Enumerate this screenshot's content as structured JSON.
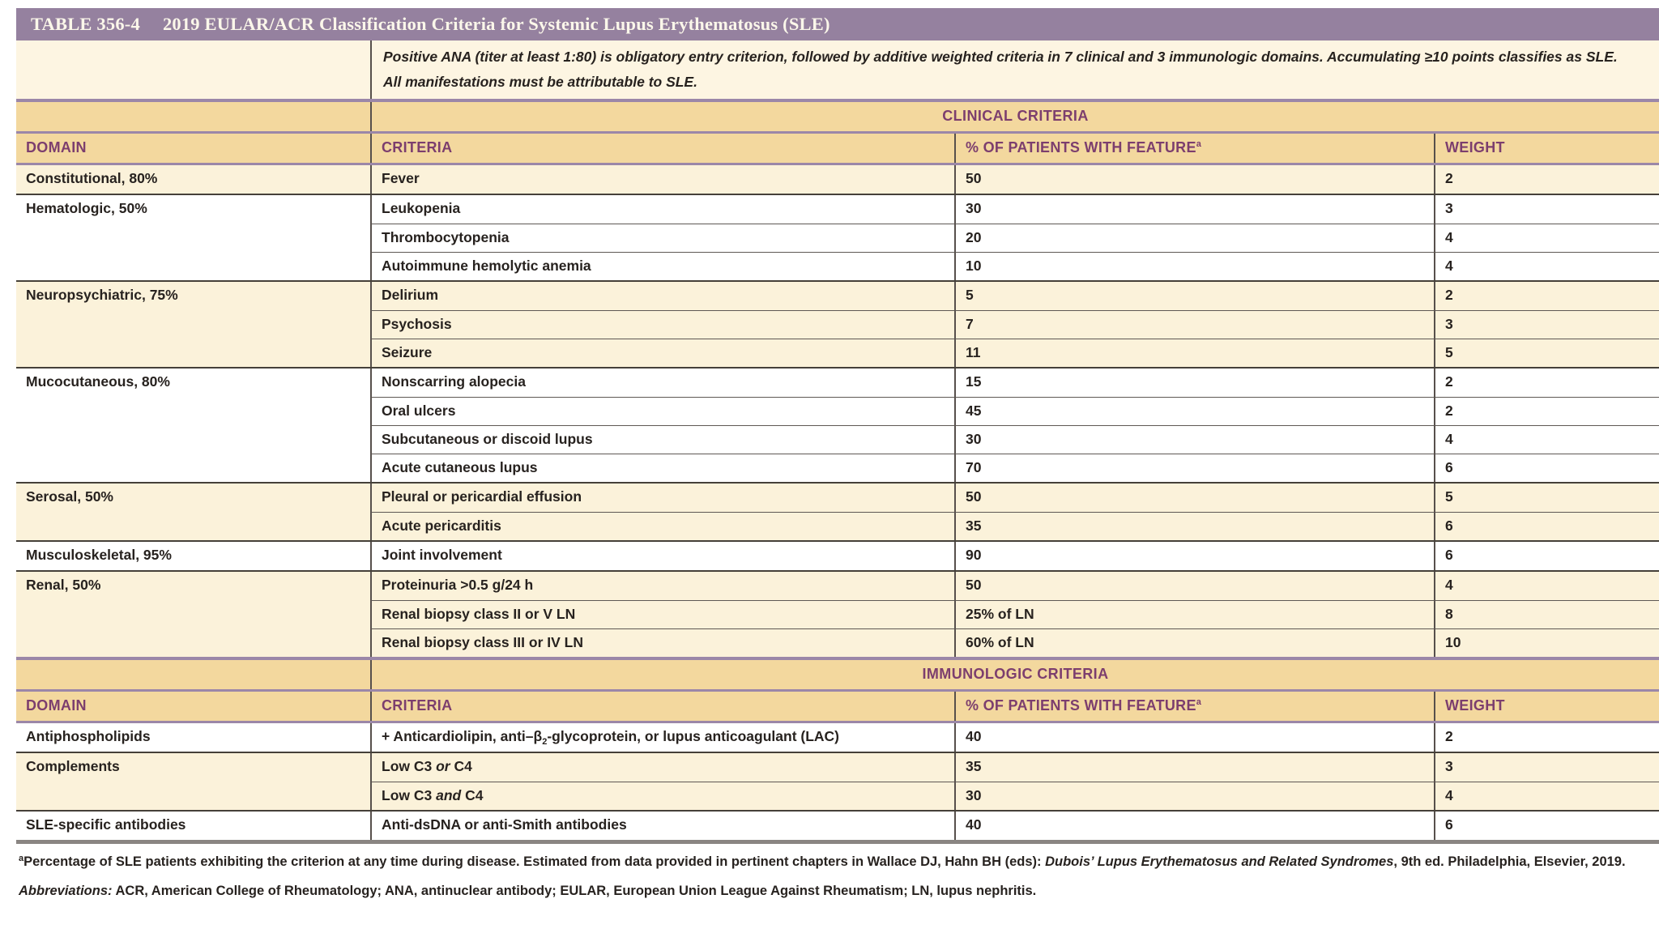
{
  "title": {
    "label": "TABLE 356-4",
    "text": "2019 EULAR/ACR Classification Criteria for Systemic Lupus Erythematosus (SLE)"
  },
  "intro": {
    "p1": "Positive ANA (titer at least 1:80) is obligatory entry criterion, followed by additive weighted criteria in 7 clinical and 3 immunologic domains. Accumulating ≥10 points classifies as SLE.",
    "p2": "All manifestations must be attributable to SLE."
  },
  "columns": {
    "domain": "DOMAIN",
    "criteria": "CRITERIA",
    "feature": "% OF PATIENTS WITH FEATURE",
    "feature_sup": "a",
    "weight": "WEIGHT"
  },
  "sections": [
    {
      "name": "CLINICAL CRITERIA",
      "groups": [
        {
          "domain": "Constitutional, 80%",
          "shade": "cream",
          "rows": [
            {
              "criteria": [
                {
                  "t": "Fever"
                }
              ],
              "pct": "50",
              "weight": "2"
            }
          ]
        },
        {
          "domain": "Hematologic, 50%",
          "shade": "white",
          "rows": [
            {
              "criteria": [
                {
                  "t": "Leukopenia"
                }
              ],
              "pct": "30",
              "weight": "3"
            },
            {
              "criteria": [
                {
                  "t": "Thrombocytopenia"
                }
              ],
              "pct": "20",
              "weight": "4"
            },
            {
              "criteria": [
                {
                  "t": "Autoimmune hemolytic anemia"
                }
              ],
              "pct": "10",
              "weight": "4"
            }
          ]
        },
        {
          "domain": "Neuropsychiatric, 75%",
          "shade": "cream",
          "rows": [
            {
              "criteria": [
                {
                  "t": "Delirium"
                }
              ],
              "pct": "5",
              "weight": "2"
            },
            {
              "criteria": [
                {
                  "t": "Psychosis"
                }
              ],
              "pct": "7",
              "weight": "3"
            },
            {
              "criteria": [
                {
                  "t": "Seizure"
                }
              ],
              "pct": "11",
              "weight": "5"
            }
          ]
        },
        {
          "domain": "Mucocutaneous, 80%",
          "shade": "white",
          "rows": [
            {
              "criteria": [
                {
                  "t": "Nonscarring alopecia"
                }
              ],
              "pct": "15",
              "weight": "2"
            },
            {
              "criteria": [
                {
                  "t": "Oral ulcers"
                }
              ],
              "pct": "45",
              "weight": "2"
            },
            {
              "criteria": [
                {
                  "t": "Subcutaneous or discoid lupus"
                }
              ],
              "pct": "30",
              "weight": "4"
            },
            {
              "criteria": [
                {
                  "t": "Acute cutaneous lupus"
                }
              ],
              "pct": "70",
              "weight": "6"
            }
          ]
        },
        {
          "domain": "Serosal, 50%",
          "shade": "cream",
          "rows": [
            {
              "criteria": [
                {
                  "t": "Pleural or pericardial effusion"
                }
              ],
              "pct": "50",
              "weight": "5"
            },
            {
              "criteria": [
                {
                  "t": "Acute pericarditis"
                }
              ],
              "pct": "35",
              "weight": "6"
            }
          ]
        },
        {
          "domain": "Musculoskeletal, 95%",
          "shade": "white",
          "rows": [
            {
              "criteria": [
                {
                  "t": "Joint involvement"
                }
              ],
              "pct": "90",
              "weight": "6"
            }
          ]
        },
        {
          "domain": "Renal, 50%",
          "shade": "cream",
          "rows": [
            {
              "criteria": [
                {
                  "t": "Proteinuria >0.5 g/24 h"
                }
              ],
              "pct": "50",
              "weight": "4"
            },
            {
              "criteria": [
                {
                  "t": "Renal biopsy class II or V LN"
                }
              ],
              "pct": "25% of LN",
              "weight": "8"
            },
            {
              "criteria": [
                {
                  "t": "Renal biopsy class III or IV LN"
                }
              ],
              "pct": "60% of LN",
              "weight": "10"
            }
          ]
        }
      ]
    },
    {
      "name": "IMMUNOLOGIC CRITERIA",
      "groups": [
        {
          "domain": "Antiphospholipids",
          "shade": "white",
          "rows": [
            {
              "criteria": [
                {
                  "t": "+ Anticardiolipin, anti–β"
                },
                {
                  "sub": "2"
                },
                {
                  "t": "-glycoprotein, or lupus anticoagulant (LAC)"
                }
              ],
              "pct": "40",
              "weight": "2"
            }
          ]
        },
        {
          "domain": "Complements",
          "shade": "cream",
          "rows": [
            {
              "criteria": [
                {
                  "t": "Low C3 "
                },
                {
                  "i": "or"
                },
                {
                  "t": " C4"
                }
              ],
              "pct": "35",
              "weight": "3"
            },
            {
              "criteria": [
                {
                  "t": "Low C3 "
                },
                {
                  "i": "and"
                },
                {
                  "t": " C4"
                }
              ],
              "pct": "30",
              "weight": "4"
            }
          ]
        },
        {
          "domain": "SLE-specific antibodies",
          "shade": "white",
          "rows": [
            {
              "criteria": [
                {
                  "t": "Anti-dsDNA or anti-Smith antibodies"
                }
              ],
              "pct": "40",
              "weight": "6"
            }
          ]
        }
      ]
    }
  ],
  "footnotes": {
    "marker": "a",
    "text1": "Percentage of SLE patients exhibiting the criterion at any time during disease. Estimated from data provided in pertinent chapters in Wallace DJ, Hahn BH (eds): ",
    "book": "Dubois’ Lupus Erythematosus and Related Syndromes",
    "text2": ", 9th ed. Philadelphia, Elsevier, 2019.",
    "abbrev_label": "Abbreviations:",
    "abbrev_text": " ACR, American College of Rheumatology; ANA, antinuclear antibody; EULAR, European Union League Against Rheumatism; LN, lupus nephritis."
  },
  "colors": {
    "title_bar": "#95819f",
    "purple_rule": "#9b87a8",
    "header_text": "#7c3e6e",
    "tan_band": "#f3d89e",
    "cream_row": "#fbf2da",
    "white_row": "#ffffff",
    "body_text": "#27221f",
    "grid_line": "#57504c"
  }
}
